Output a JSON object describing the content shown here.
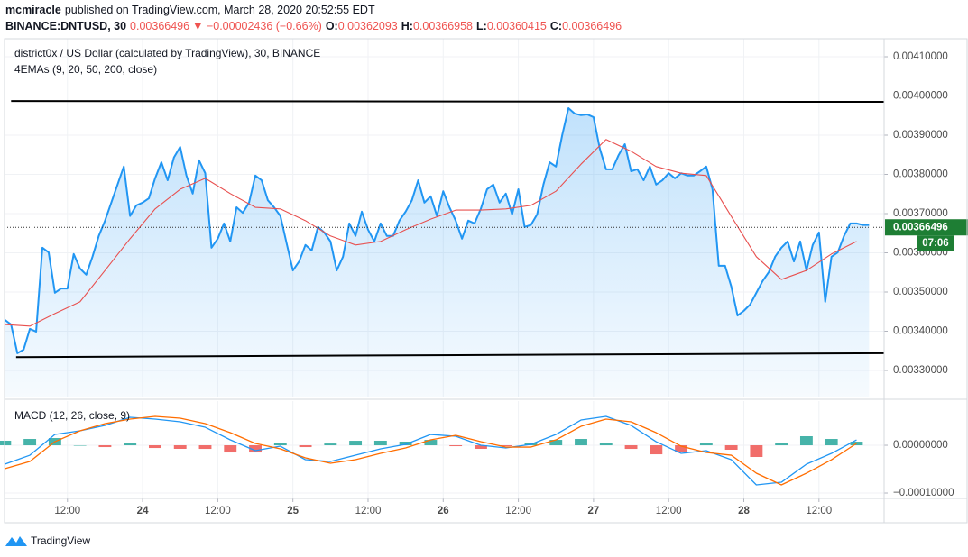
{
  "header": {
    "author": "mcmiracle",
    "published": "published on TradingView.com, March 28, 2020 20:52:55 EDT",
    "symbol": "BINANCE:DNTUSD, 30",
    "last": "0.00366496",
    "change": "▼ −0.00002436 (−0.66%)",
    "ohlc": [
      {
        "key": "O:",
        "value": "0.00362093"
      },
      {
        "key": "H:",
        "value": "0.00366958"
      },
      {
        "key": "L:",
        "value": "0.00360415"
      },
      {
        "key": "C:",
        "value": "0.00366496"
      }
    ]
  },
  "chart_data": [
    {
      "type": "line",
      "title": "district0x / US Dollar (calculated by TradingView), 30, BINANCE",
      "subtitle": "4EMAs (9, 20, 50, 200, close)",
      "x": [
        2,
        3,
        4,
        5,
        6,
        7,
        8,
        9,
        10,
        11,
        12,
        13,
        14,
        15,
        16,
        17,
        18,
        19,
        20,
        21,
        22,
        23,
        24,
        25,
        26,
        27,
        28,
        29,
        30,
        31,
        32,
        33,
        34,
        35,
        36,
        37,
        38,
        39,
        40,
        41,
        42,
        43,
        44,
        45,
        46,
        47,
        48,
        49,
        50,
        51,
        52,
        53,
        54,
        55,
        56,
        57,
        58,
        59,
        60,
        61,
        62,
        63,
        64,
        65,
        66,
        67,
        68,
        69,
        70,
        71,
        72,
        73,
        74,
        75,
        76,
        77,
        78,
        79,
        80,
        81,
        82,
        83,
        84,
        85,
        86,
        87,
        88,
        89,
        90,
        91,
        92,
        93,
        94,
        95,
        96,
        97,
        98,
        99,
        100,
        101,
        102,
        103,
        104,
        105,
        106,
        107,
        108,
        109,
        110,
        111,
        112,
        113,
        114,
        115,
        116,
        117,
        118,
        119,
        120,
        121,
        122,
        123,
        124,
        125,
        126,
        127,
        128,
        129,
        130,
        131,
        132,
        133,
        134,
        135,
        136,
        137,
        138,
        139,
        140
      ],
      "series": [
        {
          "color": "#2196f3",
          "fill": "#2196f3",
          "values": [
            0.003429,
            0.003417,
            0.003344,
            0.003353,
            0.003406,
            0.003399,
            0.003613,
            0.003601,
            0.003498,
            0.003509,
            0.003509,
            0.003597,
            0.00356,
            0.003544,
            0.00359,
            0.003643,
            0.003682,
            0.003728,
            0.003774,
            0.00382,
            0.003694,
            0.003721,
            0.003728,
            0.003739,
            0.00379,
            0.003831,
            0.003785,
            0.003843,
            0.00387,
            0.003797,
            0.003751,
            0.003836,
            0.003803,
            0.003613,
            0.003636,
            0.003675,
            0.003629,
            0.003716,
            0.003702,
            0.003728,
            0.003797,
            0.003785,
            0.003734,
            0.003716,
            0.003694,
            0.003624,
            0.003555,
            0.003578,
            0.00362,
            0.003606,
            0.003666,
            0.003652,
            0.003629,
            0.003555,
            0.00359,
            0.003675,
            0.003643,
            0.003705,
            0.003659,
            0.003629,
            0.003675,
            0.003643,
            0.003643,
            0.003682,
            0.003705,
            0.003734,
            0.003785,
            0.003728,
            0.003744,
            0.003694,
            0.003757,
            0.003716,
            0.003682,
            0.003636,
            0.003682,
            0.003675,
            0.003712,
            0.003762,
            0.003774,
            0.003728,
            0.003751,
            0.003698,
            0.003762,
            0.003666,
            0.003671,
            0.003698,
            0.003774,
            0.003831,
            0.00382,
            0.0039,
            0.003969,
            0.003955,
            0.003951,
            0.003953,
            0.003946,
            0.003866,
            0.003813,
            0.003813,
            0.003849,
            0.003877,
            0.003808,
            0.003813,
            0.003785,
            0.00382,
            0.003774,
            0.003785,
            0.003803,
            0.00379,
            0.003803,
            0.003797,
            0.003797,
            0.003808,
            0.00382,
            0.003762,
            0.003567,
            0.003567,
            0.003514,
            0.00344,
            0.003452,
            0.003468,
            0.003498,
            0.003528,
            0.003551,
            0.00359,
            0.003613,
            0.003629,
            0.003578,
            0.003629,
            0.003555,
            0.00362,
            0.003652,
            0.003475,
            0.00359,
            0.003601,
            0.003643,
            0.003675,
            0.003675,
            0.003671,
            0.003671
          ]
        },
        {
          "color": "#e8504f",
          "x": [
            2,
            6,
            10,
            14,
            18,
            22,
            26,
            30,
            34,
            38,
            42,
            46,
            50,
            54,
            58,
            62,
            66,
            70,
            74,
            78,
            82,
            86,
            90,
            94,
            98,
            102,
            106,
            110,
            114,
            118,
            122,
            126,
            130,
            134,
            138
          ],
          "values": [
            0.003417,
            0.003413,
            0.003445,
            0.003475,
            0.003555,
            0.003636,
            0.003712,
            0.003762,
            0.00379,
            0.003751,
            0.003716,
            0.003712,
            0.003682,
            0.003643,
            0.00362,
            0.003629,
            0.003659,
            0.003686,
            0.003709,
            0.003709,
            0.003712,
            0.003721,
            0.003757,
            0.003826,
            0.003889,
            0.003859,
            0.00382,
            0.003803,
            0.003797,
            0.003693,
            0.00359,
            0.003532,
            0.003555,
            0.003597,
            0.003629
          ]
        }
      ],
      "trendlines": [
        {
          "color": "#000000",
          "x": [
            3,
            142.4
          ],
          "values": [
            0.003987,
            0.003985
          ]
        },
        {
          "color": "#000000",
          "x": [
            3.8,
            142.4
          ],
          "values": [
            0.003334,
            0.003344
          ]
        }
      ],
      "last_price": 0.00366496,
      "last_color": "#1e7e34",
      "countdown": "07:06",
      "xlim": [
        1.95,
        142.4
      ],
      "ylim": [
        0.003231,
        0.004146
      ],
      "yticks": [
        {
          "value": 0.0033,
          "label": "0.00330000"
        },
        {
          "value": 0.0034,
          "label": "0.00340000"
        },
        {
          "value": 0.0035,
          "label": "0.00350000"
        },
        {
          "value": 0.0036,
          "label": "0.00360000"
        },
        {
          "value": 0.0037,
          "label": "0.00370000"
        },
        {
          "value": 0.0038,
          "label": "0.00380000"
        },
        {
          "value": 0.0039,
          "label": "0.00390000"
        },
        {
          "value": 0.004,
          "label": "0.00400000"
        },
        {
          "value": 0.0041,
          "label": "0.00410000"
        }
      ],
      "grid": true
    },
    {
      "type": "macd",
      "title": "MACD (12, 26, close, 9)",
      "x": [
        2,
        6,
        10,
        14,
        18,
        22,
        26,
        30,
        34,
        38,
        42,
        46,
        50,
        54,
        58,
        62,
        66,
        70,
        74,
        78,
        82,
        86,
        90,
        94,
        98,
        102,
        106,
        110,
        114,
        118,
        122,
        126,
        130,
        134,
        138
      ],
      "series": [
        {
          "color": "#2196f3",
          "values": [
            -3.96e-05,
            -2.08e-05,
            2.26e-05,
            3.02e-05,
            4.15e-05,
            5.85e-05,
            5.47e-05,
            4.91e-05,
            3.77e-05,
            1.13e-05,
            -1.13e-05,
            -1.9e-06,
            -3.02e-05,
            -3.4e-05,
            -2.08e-05,
            -7.5e-06,
            1.9e-06,
            2.26e-05,
            1.89e-05,
            0,
            -5.7e-06,
            1.9e-06,
            2.26e-05,
            5.28e-05,
            6.04e-05,
            4.15e-05,
            7.5e-06,
            -1.7e-05,
            -1.13e-05,
            -3.02e-05,
            -8.3e-05,
            -7.74e-05,
            -3.96e-05,
            -1.7e-05,
            1.13e-05
          ]
        },
        {
          "color": "#ff6d00",
          "values": [
            -4.91e-05,
            -3.4e-05,
            7.5e-06,
            3.02e-05,
            4.53e-05,
            5.47e-05,
            6.04e-05,
            5.66e-05,
            4.53e-05,
            2.64e-05,
            3.8e-06,
            -7.5e-06,
            -2.64e-05,
            -3.77e-05,
            -3.02e-05,
            -1.7e-05,
            -5.7e-06,
            1.13e-05,
            2.08e-05,
            7.5e-06,
            -3.8e-06,
            -3.8e-06,
            1.13e-05,
            3.96e-05,
            5.47e-05,
            4.91e-05,
            2.64e-05,
            -1.9e-06,
            -1.51e-05,
            -2.08e-05,
            -5.85e-05,
            -8.3e-05,
            -5.85e-05,
            -3.02e-05,
            3.8e-06
          ]
        }
      ],
      "histogram": {
        "up_color": "#26a69a",
        "down_color": "#ef5350",
        "values": [
          9.5e-06,
          1.32e-05,
          1.51e-05,
          0,
          -3.8e-06,
          3.8e-06,
          -5.7e-06,
          -7.5e-06,
          -7.6e-06,
          -1.51e-05,
          -1.51e-05,
          5.6e-06,
          -3.8e-06,
          3.7e-06,
          9.4e-06,
          9.5e-06,
          7.6e-06,
          1.13e-05,
          -1.9e-06,
          -7.5e-06,
          -1.9e-06,
          5.7e-06,
          1.13e-05,
          1.32e-05,
          5.7e-06,
          -7.6e-06,
          -1.89e-05,
          -1.51e-05,
          3.8e-06,
          -9.4e-06,
          -2.45e-05,
          5.6e-06,
          1.89e-05,
          1.32e-05,
          7.5e-06
        ]
      },
      "xlim": [
        1.95,
        142.4
      ],
      "ylim": [
        -0.0001094,
        9.25e-05
      ],
      "yticks": [
        {
          "value": 0,
          "label": "0.00000000"
        },
        {
          "value": -0.0001,
          "label": "−0.00010000"
        }
      ],
      "xticks": [
        {
          "value": 12,
          "label": "12:00"
        },
        24,
        {
          "value": 36,
          "label": "12:00"
        },
        {
          "value": 48,
          "label": "25"
        },
        {
          "value": 60,
          "label": "12:00"
        },
        {
          "value": 72,
          "label": "26"
        },
        {
          "value": 84,
          "label": "12:00"
        },
        {
          "value": 96,
          "label": "27"
        },
        {
          "value": 108,
          "label": "12:00"
        },
        {
          "value": 120,
          "label": "28"
        },
        {
          "value": 132,
          "label": "12:00"
        }
      ]
    }
  ],
  "footer": {
    "brand": "TradingView"
  }
}
